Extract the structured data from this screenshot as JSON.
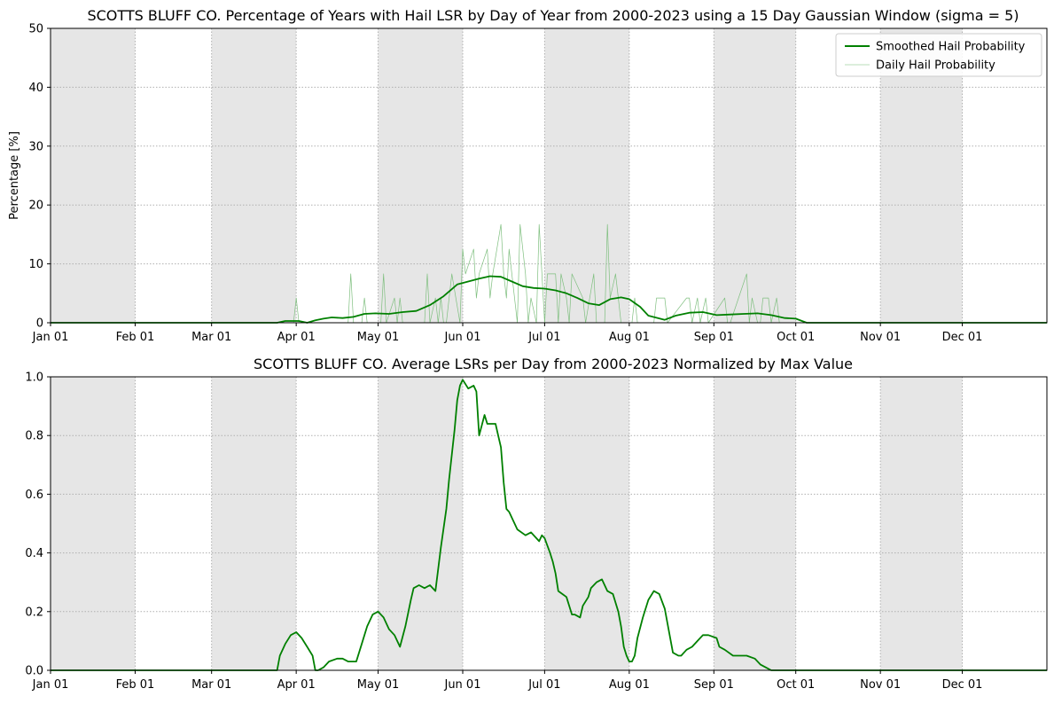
{
  "chart_data": [
    {
      "type": "line",
      "title": "SCOTTS BLUFF CO. Percentage of Years with Hail LSR by Day of Year from 2000-2023 using a 15 Day Gaussian Window (sigma = 5)",
      "xlabel": "",
      "ylabel": "Percentage [%]",
      "xlim": [
        1,
        366
      ],
      "ylim": [
        0,
        50
      ],
      "yticks": [
        0,
        10,
        20,
        30,
        40,
        50
      ],
      "month_start_days": [
        1,
        32,
        60,
        91,
        121,
        152,
        182,
        213,
        244,
        274,
        305,
        335
      ],
      "month_labels": [
        "Jan 01",
        "Feb 01",
        "Mar 01",
        "Apr 01",
        "May 01",
        "Jun 01",
        "Jul 01",
        "Aug 01",
        "Sep 01",
        "Oct 01",
        "Nov 01",
        "Dec 01"
      ],
      "shaded_months": [
        [
          1,
          32
        ],
        [
          60,
          91
        ],
        [
          121,
          152
        ],
        [
          182,
          213
        ],
        [
          244,
          274
        ],
        [
          305,
          335
        ]
      ],
      "grid": true,
      "legend_position": "top-right",
      "series": [
        {
          "name": "Smoothed Hail Probability",
          "color": "#008000",
          "x": [
            1,
            84,
            87,
            92,
            95,
            98,
            101,
            104,
            108,
            112,
            116,
            120,
            125,
            130,
            135,
            140,
            145,
            150,
            154,
            158,
            162,
            166,
            170,
            174,
            178,
            182,
            186,
            190,
            194,
            198,
            202,
            206,
            210,
            213,
            217,
            220,
            226,
            230,
            235,
            240,
            245,
            250,
            255,
            260,
            265,
            270,
            274,
            278,
            366
          ],
          "y": [
            0,
            0,
            0.3,
            0.3,
            0,
            0.4,
            0.7,
            0.9,
            0.8,
            1.0,
            1.5,
            1.6,
            1.5,
            1.8,
            2.0,
            3.0,
            4.5,
            6.5,
            7.0,
            7.5,
            7.9,
            7.8,
            7.0,
            6.2,
            5.9,
            5.8,
            5.5,
            5.0,
            4.2,
            3.3,
            3.0,
            4.0,
            4.3,
            4.0,
            2.7,
            1.2,
            0.5,
            1.2,
            1.7,
            1.8,
            1.3,
            1.4,
            1.5,
            1.6,
            1.3,
            0.8,
            0.7,
            0,
            0
          ]
        },
        {
          "name": "Daily Hail Probability",
          "color": "#7fbf7f",
          "x": [
            1,
            90,
            91,
            92,
            93,
            110,
            111,
            112,
            115,
            116,
            117,
            122,
            123,
            124,
            127,
            128,
            129,
            130,
            131,
            138,
            139,
            140,
            142,
            143,
            144,
            145,
            146,
            148,
            151,
            152,
            153,
            156,
            157,
            158,
            161,
            162,
            163,
            166,
            167,
            168,
            169,
            170,
            172,
            173,
            175,
            176,
            177,
            179,
            180,
            182,
            183,
            186,
            187,
            188,
            190,
            191,
            192,
            196,
            197,
            200,
            201,
            204,
            205,
            206,
            208,
            209,
            210,
            214,
            215,
            216,
            222,
            223,
            226,
            227,
            234,
            235,
            236,
            238,
            239,
            241,
            242,
            248,
            249,
            250,
            256,
            257,
            258,
            260,
            261,
            262,
            264,
            265,
            267,
            268,
            269,
            366
          ],
          "y": [
            0,
            0,
            4.2,
            0,
            0,
            0,
            8.3,
            0,
            0,
            4.2,
            0,
            0,
            8.3,
            0,
            4.2,
            0,
            4.2,
            0,
            0,
            0,
            8.3,
            0,
            4.2,
            0,
            4.2,
            0,
            0,
            8.3,
            0,
            12.5,
            8.3,
            12.5,
            4.2,
            8.3,
            12.5,
            4.2,
            8.3,
            16.7,
            8.3,
            4.2,
            12.5,
            8.3,
            0,
            16.7,
            8.3,
            0,
            4.2,
            0,
            16.7,
            0,
            8.3,
            8.3,
            0,
            8.3,
            4.2,
            0,
            8.3,
            4.2,
            0,
            8.3,
            0,
            0,
            16.7,
            4.2,
            8.3,
            4.2,
            0,
            0,
            4.2,
            0,
            0,
            4.2,
            4.2,
            0,
            4.2,
            4.2,
            0,
            4.2,
            0,
            4.2,
            0,
            4.2,
            0,
            0,
            8.3,
            0,
            4.2,
            0,
            0,
            4.2,
            4.2,
            0,
            4.2,
            0,
            0,
            0
          ]
        }
      ]
    },
    {
      "type": "line",
      "title": "SCOTTS BLUFF CO. Average LSRs per Day from 2000-2023 Normalized by Max Value",
      "xlabel": "",
      "ylabel": "",
      "xlim": [
        1,
        366
      ],
      "ylim": [
        0,
        1
      ],
      "yticks": [
        0.0,
        0.2,
        0.4,
        0.6,
        0.8,
        1.0
      ],
      "month_start_days": [
        1,
        32,
        60,
        91,
        121,
        152,
        182,
        213,
        244,
        274,
        305,
        335
      ],
      "month_labels": [
        "Jan 01",
        "Feb 01",
        "Mar 01",
        "Apr 01",
        "May 01",
        "Jun 01",
        "Jul 01",
        "Aug 01",
        "Sep 01",
        "Oct 01",
        "Nov 01",
        "Dec 01"
      ],
      "shaded_months": [
        [
          1,
          32
        ],
        [
          60,
          91
        ],
        [
          121,
          152
        ],
        [
          182,
          213
        ],
        [
          244,
          274
        ],
        [
          305,
          335
        ]
      ],
      "grid": true,
      "series": [
        {
          "color": "#008000",
          "x": [
            1,
            84,
            85,
            87,
            89,
            91,
            93,
            95,
            97,
            98,
            99,
            101,
            103,
            106,
            108,
            110,
            112,
            113,
            115,
            117,
            119,
            121,
            123,
            125,
            127,
            129,
            131,
            133,
            134,
            136,
            138,
            140,
            142,
            144,
            146,
            147,
            149,
            150,
            151,
            152,
            154,
            156,
            157,
            158,
            160,
            161,
            163,
            164,
            165,
            166,
            167,
            168,
            169,
            172,
            175,
            177,
            179,
            180,
            181,
            182,
            184,
            185,
            186,
            187,
            190,
            192,
            193,
            195,
            196,
            198,
            199,
            201,
            203,
            205,
            207,
            209,
            210,
            211,
            212,
            213,
            214,
            215,
            216,
            218,
            220,
            222,
            224,
            226,
            229,
            231,
            232,
            234,
            236,
            238,
            240,
            242,
            245,
            246,
            248,
            251,
            254,
            256,
            259,
            261,
            263,
            265,
            268,
            270,
            272,
            274,
            366
          ],
          "y": [
            0,
            0,
            0.05,
            0.09,
            0.12,
            0.13,
            0.11,
            0.08,
            0.05,
            0,
            0,
            0.01,
            0.03,
            0.04,
            0.04,
            0.03,
            0.03,
            0.03,
            0.09,
            0.15,
            0.19,
            0.2,
            0.18,
            0.14,
            0.12,
            0.08,
            0.15,
            0.24,
            0.28,
            0.29,
            0.28,
            0.29,
            0.27,
            0.42,
            0.55,
            0.65,
            0.82,
            0.92,
            0.97,
            0.99,
            0.96,
            0.97,
            0.95,
            0.8,
            0.87,
            0.84,
            0.84,
            0.84,
            0.8,
            0.76,
            0.64,
            0.55,
            0.54,
            0.48,
            0.46,
            0.47,
            0.45,
            0.44,
            0.46,
            0.45,
            0.4,
            0.37,
            0.33,
            0.27,
            0.25,
            0.19,
            0.19,
            0.18,
            0.22,
            0.25,
            0.28,
            0.3,
            0.31,
            0.27,
            0.26,
            0.2,
            0.15,
            0.08,
            0.05,
            0.03,
            0.03,
            0.05,
            0.11,
            0.18,
            0.24,
            0.27,
            0.26,
            0.21,
            0.06,
            0.05,
            0.05,
            0.07,
            0.08,
            0.1,
            0.12,
            0.12,
            0.11,
            0.08,
            0.07,
            0.05,
            0.05,
            0.05,
            0.04,
            0.02,
            0.01,
            0,
            0,
            0,
            0,
            0,
            0
          ]
        }
      ]
    }
  ]
}
